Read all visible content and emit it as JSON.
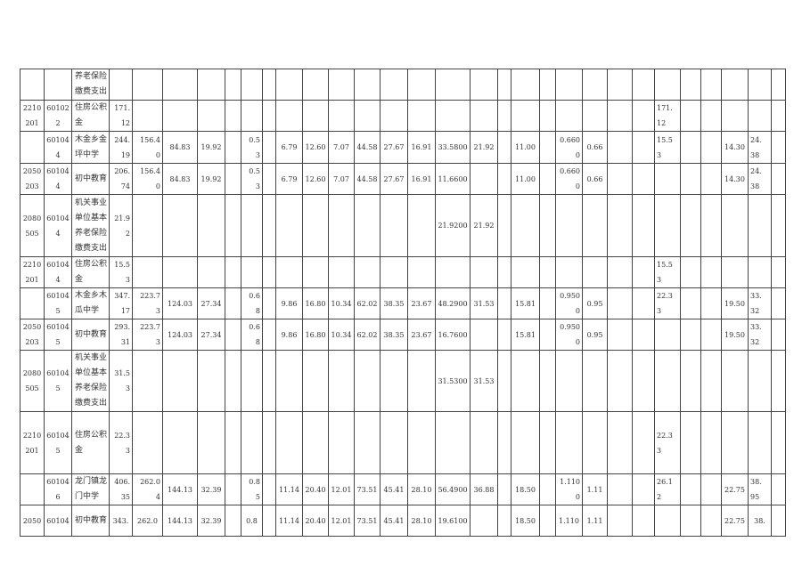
{
  "table": {
    "rows": [
      [
        "",
        "",
        "养老保险\n缴费支出",
        "",
        "",
        "",
        "",
        "",
        "",
        "",
        "",
        "",
        "",
        "",
        "",
        "",
        "",
        "",
        "",
        "",
        "",
        "",
        "",
        "",
        "",
        "",
        "",
        "",
        "",
        "",
        ""
      ],
      [
        "2210\n201",
        "60102\n2",
        "住房公积\n金",
        "171.\n12",
        "",
        "",
        "",
        "",
        "",
        "",
        "",
        "",
        "",
        "",
        "",
        "",
        "",
        "",
        "",
        "",
        "",
        "",
        "",
        "",
        "",
        "171.\n12",
        "",
        "",
        "",
        "",
        ""
      ],
      [
        "",
        "60104\n4",
        "木金乡金\n坪中学",
        "244.\n19",
        "156.4\n0",
        "84.83",
        "19.92",
        "",
        "0.5\n3",
        "",
        "6.79",
        "12.60",
        "7.07",
        "44.58",
        "27.67",
        "16.91",
        "33.5800",
        "21.92",
        "",
        "11.00",
        "",
        "0.660\n0",
        "0.66",
        "",
        "",
        "15.5\n3",
        "",
        "",
        "14.30",
        "24.\n38",
        ""
      ],
      [
        "2050\n203",
        "60104\n4",
        "初中教育",
        "206.\n74",
        "156.4\n0",
        "84.83",
        "19.92",
        "",
        "0.5\n3",
        "",
        "6.79",
        "12.60",
        "7.07",
        "44.58",
        "27.67",
        "16.91",
        "11.6600",
        "",
        "",
        "11.00",
        "",
        "0.660\n0",
        "0.66",
        "",
        "",
        "",
        "",
        "",
        "14.30",
        "24.\n38",
        ""
      ],
      [
        "2080\n505",
        "60104\n4",
        "机关事业\n单位基本\n养老保险\n缴费支出",
        "21.9\n2",
        "",
        "",
        "",
        "",
        "",
        "",
        "",
        "",
        "",
        "",
        "",
        "",
        "21.9200",
        "21.92",
        "",
        "",
        "",
        "",
        "",
        "",
        "",
        "",
        "",
        "",
        "",
        "",
        ""
      ],
      [
        "2210\n201",
        "60104\n4",
        "住房公积\n金",
        "15.5\n3",
        "",
        "",
        "",
        "",
        "",
        "",
        "",
        "",
        "",
        "",
        "",
        "",
        "",
        "",
        "",
        "",
        "",
        "",
        "",
        "",
        "",
        "15.5\n3",
        "",
        "",
        "",
        "",
        ""
      ],
      [
        "",
        "60104\n5",
        "木金乡木\n瓜中学",
        "347.\n17",
        "223.7\n3",
        "124.03",
        "27.34",
        "",
        "0.6\n8",
        "",
        "9.86",
        "16.80",
        "10.34",
        "62.02",
        "38.35",
        "23.67",
        "48.2900",
        "31.53",
        "",
        "15.81",
        "",
        "0.950\n0",
        "0.95",
        "",
        "",
        "22.3\n3",
        "",
        "",
        "19.50",
        "33.\n32",
        ""
      ],
      [
        "2050\n203",
        "60104\n5",
        "初中教育",
        "293.\n31",
        "223.7\n3",
        "124.03",
        "27.34",
        "",
        "0.6\n8",
        "",
        "9.86",
        "16.80",
        "10.34",
        "62.02",
        "38.35",
        "23.67",
        "16.7600",
        "",
        "",
        "15.81",
        "",
        "0.950\n0",
        "0.95",
        "",
        "",
        "",
        "",
        "",
        "19.50",
        "33.\n32",
        ""
      ],
      [
        "2080\n505",
        "60104\n5",
        "机关事业\n单位基本\n养老保险\n缴费支出",
        "31.5\n3",
        "",
        "",
        "",
        "",
        "",
        "",
        "",
        "",
        "",
        "",
        "",
        "",
        "31.5300",
        "31.53",
        "",
        "",
        "",
        "",
        "",
        "",
        "",
        "",
        "",
        "",
        "",
        "",
        ""
      ],
      [
        "2210\n201",
        "60104\n5",
        "住房公积\n金",
        "22.3\n3",
        "",
        "",
        "",
        "",
        "",
        "",
        "",
        "",
        "",
        "",
        "",
        "",
        "",
        "",
        "",
        "",
        "",
        "",
        "",
        "",
        "",
        "22.3\n3",
        "",
        "",
        "",
        "",
        ""
      ],
      [
        "",
        "60104\n6",
        "龙门镇龙\n门中学",
        "406.\n35",
        "262.0\n4",
        "144.13",
        "32.39",
        "",
        "0.8\n5",
        "",
        "11.14",
        "20.40",
        "12.01",
        "73.51",
        "45.41",
        "28.10",
        "56.4900",
        "36.88",
        "",
        "18.50",
        "",
        "1.110\n0",
        "1.11",
        "",
        "",
        "26.1\n2",
        "",
        "",
        "22.75",
        "38.\n95",
        ""
      ],
      [
        "2050",
        "60104",
        "初中教育",
        "343.",
        "262.0",
        "144.13",
        "32.39",
        "",
        "0.8",
        "",
        "11.14",
        "20.40",
        "12.01",
        "73.51",
        "45.41",
        "28.10",
        "19.6100",
        "",
        "",
        "18.50",
        "",
        "1.110",
        "1.11",
        "",
        "",
        "",
        "",
        "",
        "22.75",
        "38.",
        ""
      ]
    ]
  }
}
